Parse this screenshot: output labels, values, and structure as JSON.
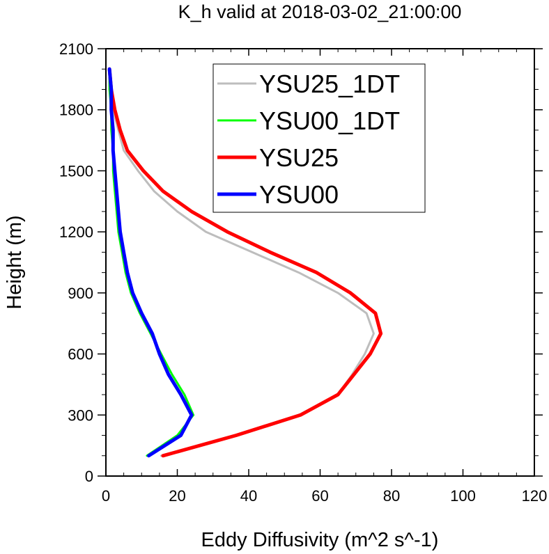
{
  "chart_data": {
    "type": "line",
    "title": "K_h valid at 2018-03-02_21:00:00",
    "xlabel": "Eddy Diffusivity (m^2 s^-1)",
    "ylabel": "Height (m)",
    "xlim": [
      0,
      120
    ],
    "ylim": [
      0,
      2100
    ],
    "xticks": [
      0,
      20,
      40,
      60,
      80,
      100,
      120
    ],
    "yticks": [
      0,
      300,
      600,
      900,
      1200,
      1500,
      1800,
      2100
    ],
    "grid": false,
    "legend_position": "top-right",
    "series": [
      {
        "name": "YSU25_1DT",
        "color": "#bdbdbd",
        "width": 3,
        "points": [
          [
            15.5,
            100
          ],
          [
            36,
            200
          ],
          [
            54,
            300
          ],
          [
            65,
            400
          ],
          [
            69,
            500
          ],
          [
            72.5,
            600
          ],
          [
            75,
            700
          ],
          [
            73,
            800
          ],
          [
            65,
            900
          ],
          [
            54,
            1000
          ],
          [
            41,
            1100
          ],
          [
            28,
            1200
          ],
          [
            20,
            1300
          ],
          [
            13.5,
            1400
          ],
          [
            9,
            1500
          ],
          [
            5,
            1600
          ],
          [
            3.5,
            1700
          ],
          [
            2,
            1800
          ],
          [
            1.5,
            1900
          ],
          [
            1,
            2000
          ]
        ]
      },
      {
        "name": "YSU00_1DT",
        "color": "#00ff00",
        "width": 3,
        "points": [
          [
            11.5,
            100
          ],
          [
            20,
            200
          ],
          [
            24.5,
            300
          ],
          [
            22,
            400
          ],
          [
            18.5,
            500
          ],
          [
            15.5,
            600
          ],
          [
            12.5,
            700
          ],
          [
            9.5,
            800
          ],
          [
            7,
            900
          ],
          [
            5.5,
            1000
          ],
          [
            4.5,
            1100
          ],
          [
            3.5,
            1200
          ],
          [
            3,
            1300
          ],
          [
            2.5,
            1400
          ],
          [
            2,
            1500
          ],
          [
            2,
            1600
          ],
          [
            1.5,
            1700
          ],
          [
            1.5,
            1800
          ],
          [
            1,
            1900
          ],
          [
            1,
            2000
          ]
        ]
      },
      {
        "name": "YSU25",
        "color": "#ff0000",
        "width": 5,
        "points": [
          [
            16,
            100
          ],
          [
            36.5,
            200
          ],
          [
            54.5,
            300
          ],
          [
            65,
            400
          ],
          [
            69.5,
            500
          ],
          [
            74,
            600
          ],
          [
            77,
            700
          ],
          [
            75.5,
            800
          ],
          [
            68.5,
            900
          ],
          [
            59,
            1000
          ],
          [
            46,
            1100
          ],
          [
            34,
            1200
          ],
          [
            24,
            1300
          ],
          [
            16,
            1400
          ],
          [
            10.5,
            1500
          ],
          [
            6,
            1600
          ],
          [
            4,
            1700
          ],
          [
            2.5,
            1800
          ],
          [
            1.5,
            1900
          ],
          [
            1,
            2000
          ]
        ]
      },
      {
        "name": "YSU00",
        "color": "#0000ff",
        "width": 5,
        "points": [
          [
            12,
            100
          ],
          [
            21,
            200
          ],
          [
            24,
            300
          ],
          [
            21,
            400
          ],
          [
            17.5,
            500
          ],
          [
            15,
            600
          ],
          [
            13,
            700
          ],
          [
            10,
            800
          ],
          [
            7.5,
            900
          ],
          [
            6,
            1000
          ],
          [
            5,
            1100
          ],
          [
            4,
            1200
          ],
          [
            3.5,
            1300
          ],
          [
            3,
            1400
          ],
          [
            2.5,
            1500
          ],
          [
            2,
            1600
          ],
          [
            2,
            1700
          ],
          [
            1.5,
            1800
          ],
          [
            1.5,
            1900
          ],
          [
            1,
            2000
          ]
        ]
      }
    ]
  }
}
